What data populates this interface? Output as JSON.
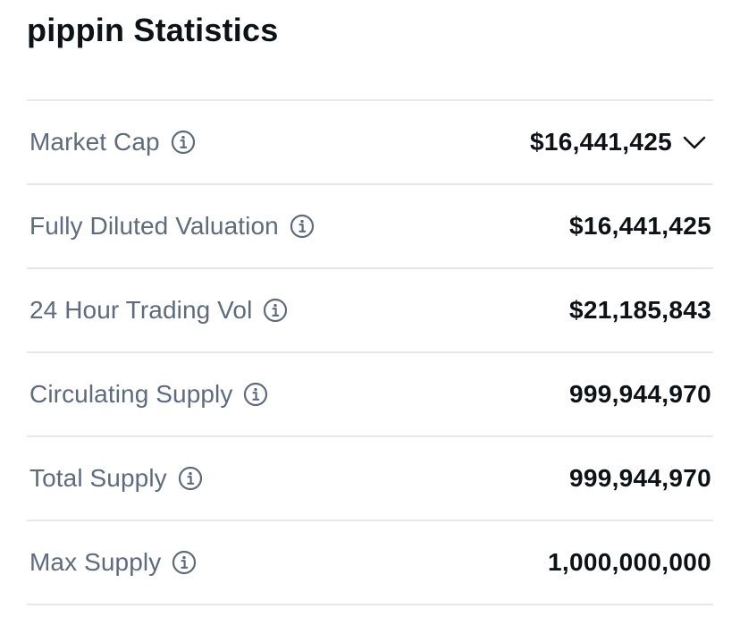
{
  "header": {
    "title": "pippin Statistics"
  },
  "stats": [
    {
      "label": "Market Cap",
      "value": "$16,441,425",
      "expandable": true
    },
    {
      "label": "Fully Diluted Valuation",
      "value": "$16,441,425",
      "expandable": false
    },
    {
      "label": "24 Hour Trading Vol",
      "value": "$21,185,843",
      "expandable": false
    },
    {
      "label": "Circulating Supply",
      "value": "999,944,970",
      "expandable": false
    },
    {
      "label": "Total Supply",
      "value": "999,944,970",
      "expandable": false
    },
    {
      "label": "Max Supply",
      "value": "1,000,000,000",
      "expandable": false
    }
  ],
  "icons": {
    "info": "info-icon",
    "expand": "chevron-down-icon"
  },
  "colors": {
    "label": "#5e6b7c",
    "value": "#0d1217",
    "divider": "#e5e8ec"
  }
}
